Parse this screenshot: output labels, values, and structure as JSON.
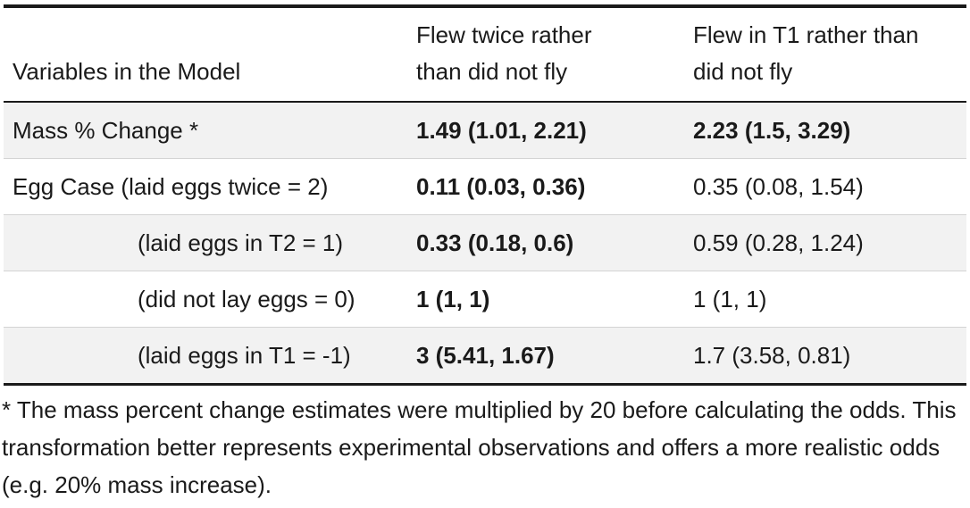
{
  "table": {
    "headers": {
      "col1": "Variables in the Model",
      "col2_line1": "Flew twice rather",
      "col2_line2": "than did not fly",
      "col3_line1": "Flew in T1 rather than",
      "col3_line2": "did not fly"
    },
    "rows": [
      {
        "variable": "Mass % Change *",
        "flew_twice": "1.49 (1.01, 2.21)",
        "flew_t1": "2.23 (1.5, 3.29)"
      },
      {
        "variable": "Egg Case (laid eggs twice = 2)",
        "flew_twice": "0.11 (0.03, 0.36)",
        "flew_t1": "0.35 (0.08, 1.54)"
      },
      {
        "variable": "(laid eggs in T2 = 1)",
        "flew_twice": "0.33 (0.18, 0.6)",
        "flew_t1": "0.59 (0.28, 1.24)"
      },
      {
        "variable": "(did not lay eggs = 0)",
        "flew_twice": "1 (1, 1)",
        "flew_t1": "1 (1, 1)"
      },
      {
        "variable": "(laid eggs in T1 = -1)",
        "flew_twice": "3 (5.41, 1.67)",
        "flew_t1": "1.7 (3.58, 0.81)"
      }
    ]
  },
  "footnote": "* The mass percent change estimates were multiplied by 20 before calculating the odds. This transformation better represents experimental observations and offers a more realistic odds (e.g. 20% mass increase)."
}
